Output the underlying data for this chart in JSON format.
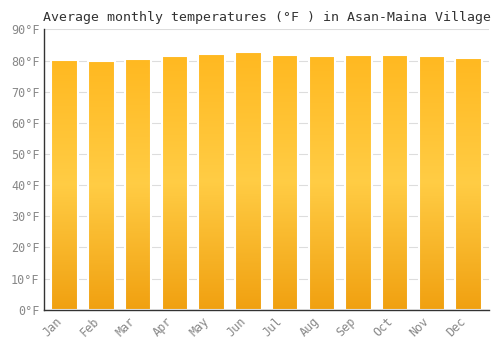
{
  "title": "Average monthly temperatures (°F ) in Asan-Maina Village",
  "months": [
    "Jan",
    "Feb",
    "Mar",
    "Apr",
    "May",
    "Jun",
    "Jul",
    "Aug",
    "Sep",
    "Oct",
    "Nov",
    "Dec"
  ],
  "values": [
    80.1,
    79.8,
    80.6,
    81.5,
    82.0,
    82.7,
    81.8,
    81.5,
    81.8,
    81.8,
    81.5,
    80.9
  ],
  "bar_color_bottom": "#F0A010",
  "bar_color_mid": "#FFCC44",
  "bar_color_top": "#FFB820",
  "bar_edge_color": "#FFFFFF",
  "background_color": "#FFFFFF",
  "plot_bg_color": "#FFFFFF",
  "grid_color": "#DDDDDD",
  "text_color": "#888888",
  "spine_color": "#333333",
  "ylim": [
    0,
    90
  ],
  "yticks": [
    0,
    10,
    20,
    30,
    40,
    50,
    60,
    70,
    80,
    90
  ],
  "title_fontsize": 9.5,
  "tick_fontsize": 8.5,
  "font_family": "monospace"
}
